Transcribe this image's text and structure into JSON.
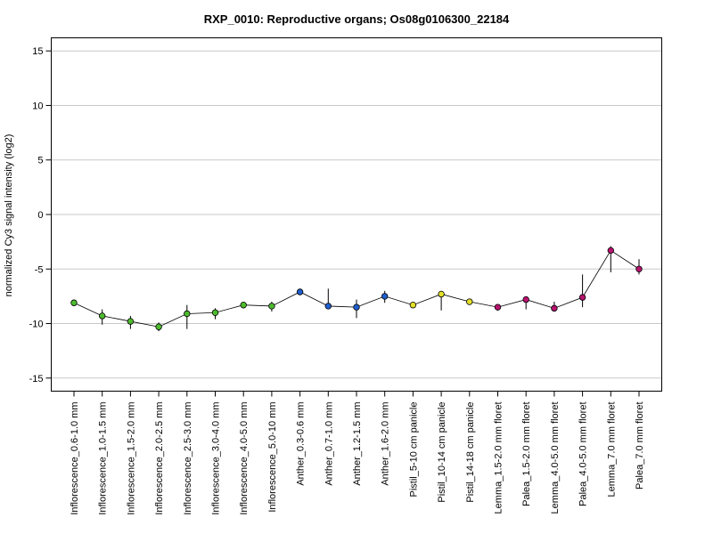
{
  "chart_data": {
    "type": "line",
    "title": "RXP_0010: Reproductive organs; Os08g0106300_22184",
    "xlabel": "",
    "ylabel": "normalized Cy3 signal intensity (log2)",
    "ylim": [
      -16.2,
      16.2
    ],
    "yticks": [
      15,
      10,
      5,
      0,
      -5,
      -10,
      -15
    ],
    "grid": true,
    "categories": [
      "Inflorescence_0.6-1.0 mm",
      "Inflorescence_1.0-1.5 mm",
      "Inflorescence_1.5-2.0 mm",
      "Inflorescence_2.0-2.5 mm",
      "Inflorescence_2.5-3.0 mm",
      "Inflorescence_3.0-4.0 mm",
      "Inflorescence_4.0-5.0 mm",
      "Inflorescence_5.0-10 mm",
      "Anther_0.3-0.6 mm",
      "Anther_0.7-1.0 mm",
      "Anther_1.2-1.5 mm",
      "Anther_1.6-2.0 mm",
      "Pistil_5-10 cm panicle",
      "Pistil_10-14 cm panicle",
      "Pistil_14-18 cm panicle",
      "Lemma_1.5-2.0 mm floret",
      "Palea_1.5-2.0 mm floret",
      "Lemma_4.0-5.0 mm floret",
      "Palea_4.0-5.0 mm floret",
      "Lemma_7.0 mm floret",
      "Palea_7.0 mm floret"
    ],
    "values": [
      -8.1,
      -9.3,
      -9.8,
      -10.3,
      -9.1,
      -9.0,
      -8.3,
      -8.4,
      -7.1,
      -8.4,
      -8.5,
      -7.5,
      -8.3,
      -7.3,
      -8.0,
      -8.5,
      -7.8,
      -8.6,
      -7.6,
      -3.3,
      -5.0
    ],
    "error_low": [
      -8.1,
      -10.1,
      -10.5,
      -10.7,
      -10.5,
      -9.6,
      -8.6,
      -8.9,
      -7.1,
      -8.4,
      -9.5,
      -8.1,
      -8.3,
      -8.8,
      -8.0,
      -8.8,
      -8.7,
      -8.9,
      -8.5,
      -5.3,
      -5.5
    ],
    "error_high": [
      -8.1,
      -8.7,
      -9.3,
      -9.9,
      -8.3,
      -8.6,
      -8.1,
      -8.0,
      -7.1,
      -6.8,
      -7.8,
      -7.0,
      -8.3,
      -7.2,
      -8.0,
      -8.3,
      -7.6,
      -8.0,
      -5.5,
      -2.9,
      -4.1
    ],
    "point_colors": [
      "#4dbb2e",
      "#4dbb2e",
      "#4dbb2e",
      "#4dbb2e",
      "#4dbb2e",
      "#4dbb2e",
      "#4dbb2e",
      "#4dbb2e",
      "#1f5fcf",
      "#1f5fcf",
      "#1f5fcf",
      "#1f5fcf",
      "#e3df2a",
      "#e3df2a",
      "#e3df2a",
      "#b8136f",
      "#b8136f",
      "#b8136f",
      "#b8136f",
      "#b8136f",
      "#b8136f"
    ]
  }
}
